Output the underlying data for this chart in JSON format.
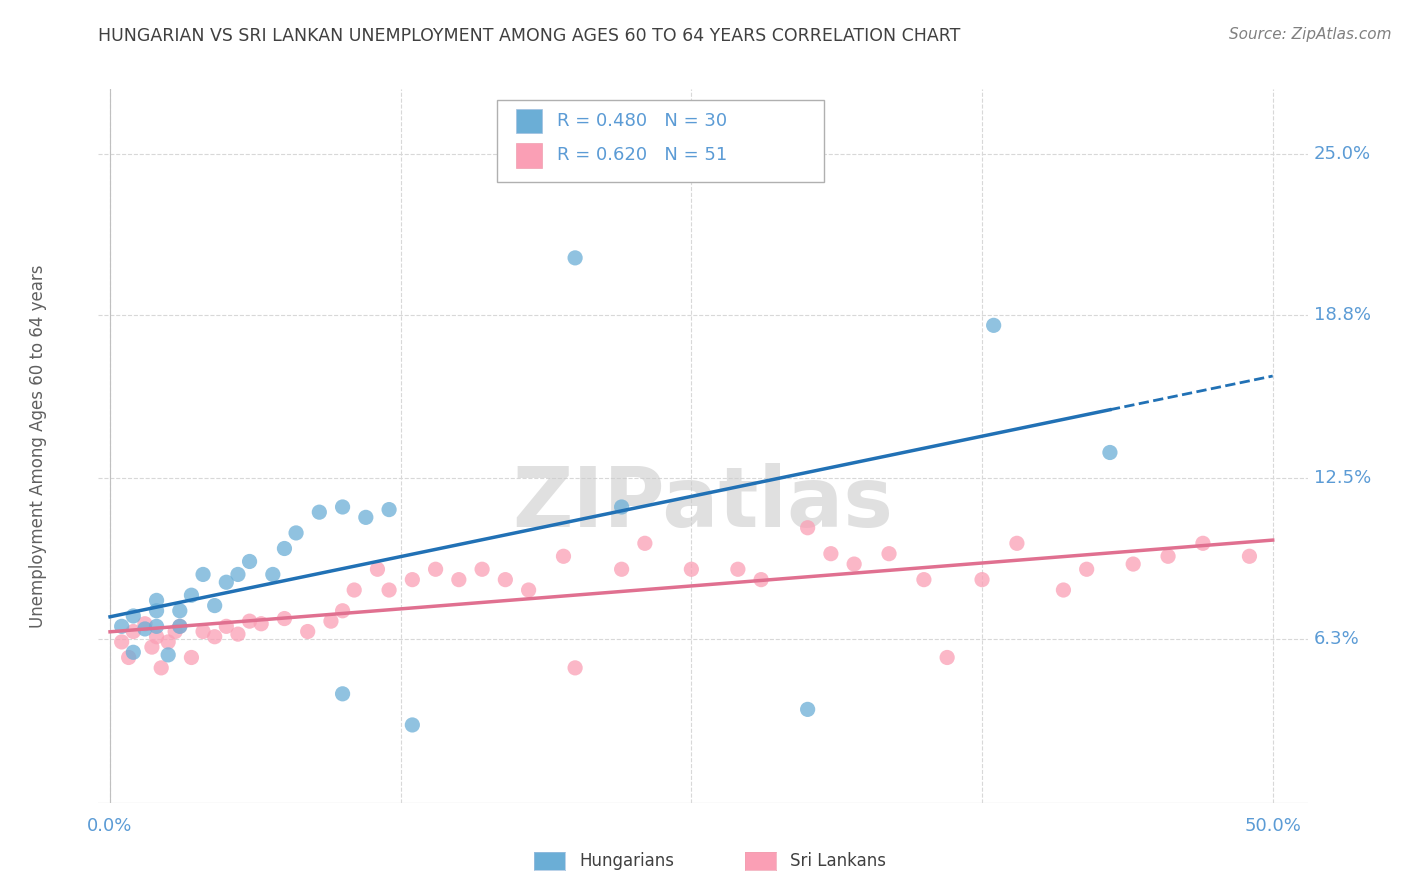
{
  "title": "HUNGARIAN VS SRI LANKAN UNEMPLOYMENT AMONG AGES 60 TO 64 YEARS CORRELATION CHART",
  "source": "Source: ZipAtlas.com",
  "ylabel": "Unemployment Among Ages 60 to 64 years",
  "ylim": [
    0.0,
    0.275
  ],
  "xlim": [
    -0.005,
    0.515
  ],
  "yticks": [
    0.0,
    0.063,
    0.125,
    0.188,
    0.25
  ],
  "ytick_labels": [
    "",
    "6.3%",
    "12.5%",
    "18.8%",
    "25.0%"
  ],
  "xticks": [
    0.0,
    0.125,
    0.25,
    0.375,
    0.5
  ],
  "xtick_labels": [
    "0.0%",
    "",
    "",
    "",
    "50.0%"
  ],
  "hungarian_R": 0.48,
  "hungarian_N": 30,
  "srilankan_R": 0.62,
  "srilankan_N": 51,
  "blue_color": "#6baed6",
  "pink_color": "#fa9fb5",
  "blue_line_color": "#2171b5",
  "pink_line_color": "#e07090",
  "label_color": "#5b9bd5",
  "grid_color": "#d8d8d8",
  "title_color": "#404040",
  "source_color": "#808080",
  "watermark": "ZIPatlas",
  "hungarian_x": [
    0.005,
    0.01,
    0.01,
    0.015,
    0.02,
    0.02,
    0.02,
    0.025,
    0.03,
    0.03,
    0.035,
    0.04,
    0.045,
    0.05,
    0.055,
    0.06,
    0.07,
    0.075,
    0.08,
    0.09,
    0.1,
    0.1,
    0.11,
    0.12,
    0.13,
    0.2,
    0.22,
    0.3,
    0.38,
    0.43
  ],
  "hungarian_y": [
    0.068,
    0.072,
    0.058,
    0.067,
    0.068,
    0.074,
    0.078,
    0.057,
    0.068,
    0.074,
    0.08,
    0.088,
    0.076,
    0.085,
    0.088,
    0.093,
    0.088,
    0.098,
    0.104,
    0.112,
    0.114,
    0.042,
    0.11,
    0.113,
    0.03,
    0.21,
    0.114,
    0.036,
    0.184,
    0.135
  ],
  "srilankan_x": [
    0.005,
    0.008,
    0.01,
    0.015,
    0.018,
    0.02,
    0.022,
    0.025,
    0.028,
    0.03,
    0.035,
    0.04,
    0.045,
    0.05,
    0.055,
    0.06,
    0.065,
    0.075,
    0.085,
    0.095,
    0.1,
    0.105,
    0.115,
    0.12,
    0.13,
    0.14,
    0.15,
    0.16,
    0.17,
    0.18,
    0.195,
    0.2,
    0.22,
    0.23,
    0.25,
    0.27,
    0.28,
    0.3,
    0.31,
    0.32,
    0.335,
    0.35,
    0.36,
    0.375,
    0.39,
    0.41,
    0.42,
    0.44,
    0.455,
    0.47,
    0.49
  ],
  "srilankan_y": [
    0.062,
    0.056,
    0.066,
    0.069,
    0.06,
    0.064,
    0.052,
    0.062,
    0.066,
    0.068,
    0.056,
    0.066,
    0.064,
    0.068,
    0.065,
    0.07,
    0.069,
    0.071,
    0.066,
    0.07,
    0.074,
    0.082,
    0.09,
    0.082,
    0.086,
    0.09,
    0.086,
    0.09,
    0.086,
    0.082,
    0.095,
    0.052,
    0.09,
    0.1,
    0.09,
    0.09,
    0.086,
    0.106,
    0.096,
    0.092,
    0.096,
    0.086,
    0.056,
    0.086,
    0.1,
    0.082,
    0.09,
    0.092,
    0.095,
    0.1,
    0.095
  ]
}
